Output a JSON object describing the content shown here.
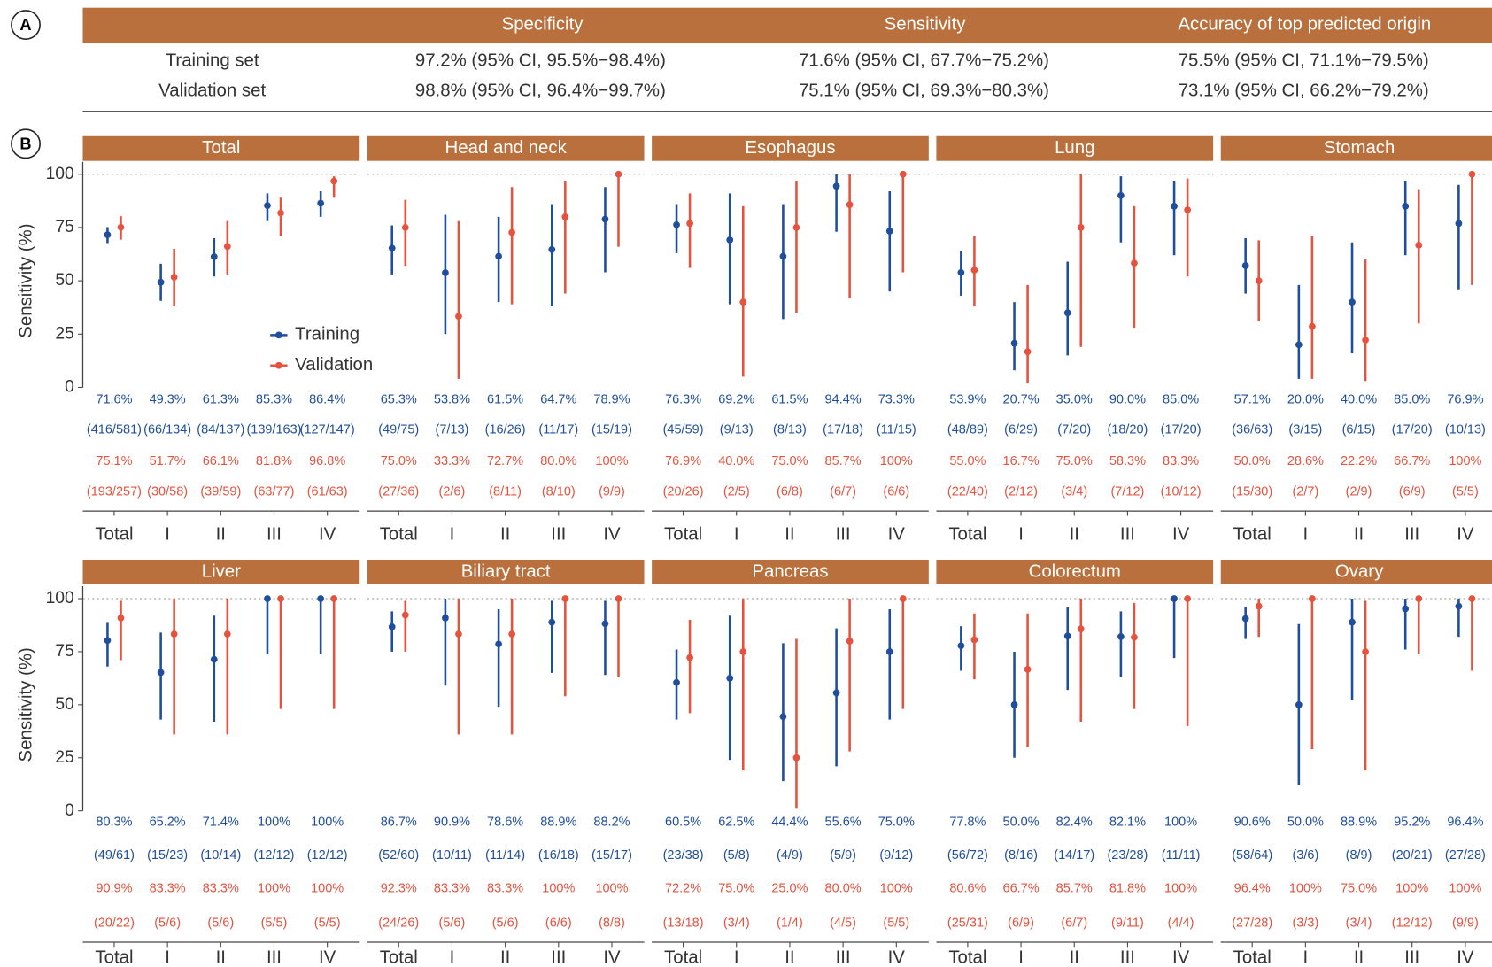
{
  "labels": [
    "A",
    "B"
  ],
  "table": {
    "header": [
      "Specificity",
      "Sensitivity",
      "Accuracy of top predicted origin"
    ],
    "rows": [
      [
        "Training set",
        "97.2% (95% CI, 95.5%−98.4%)",
        "71.6% (95% CI, 67.7%−75.2%)",
        "75.5% (95% CI, 71.1%−79.5%)"
      ],
      [
        "Validation set",
        "98.8% (95% CI, 96.4%−99.7%)",
        "75.1% (95% CI, 69.3%−80.3%)",
        "73.1% (95% CI, 66.2%−79.2%)"
      ]
    ]
  },
  "chart_data": [
    {
      "type": "errorbar",
      "title": "Total",
      "ylabel": "Sensitivity (%)",
      "ylim": [
        0,
        100
      ],
      "yticks": [
        0,
        25,
        50,
        75,
        100
      ],
      "hline": 100,
      "legend": "center-left",
      "categories": [
        "Total",
        "I",
        "II",
        "III",
        "IV"
      ],
      "series": [
        {
          "name": "Training",
          "color": "#1f4e9c",
          "values": [
            71.6,
            49.3,
            61.3,
            85.3,
            86.4
          ],
          "lower": [
            67.7,
            40.6,
            52,
            78,
            80
          ],
          "upper": [
            75.2,
            58,
            70,
            91,
            92
          ],
          "value_labels": [
            "71.6%",
            "49.3%",
            "61.3%",
            "85.3%",
            "86.4%"
          ],
          "counts": [
            "(416/581)",
            "(66/134)",
            "(84/137)",
            "(139/163)",
            "(127/147)"
          ]
        },
        {
          "name": "Validation",
          "color": "#e5533f",
          "values": [
            75.1,
            51.7,
            66.1,
            81.8,
            96.8
          ],
          "lower": [
            69.3,
            38,
            53,
            71,
            89
          ],
          "upper": [
            80.3,
            65,
            78,
            89,
            99
          ],
          "value_labels": [
            "75.1%",
            "51.7%",
            "66.1%",
            "81.8%",
            "96.8%"
          ],
          "counts": [
            "(193/257)",
            "(30/58)",
            "(39/59)",
            "(63/77)",
            "(61/63)"
          ]
        }
      ]
    },
    {
      "type": "errorbar",
      "title": "Head and neck",
      "ylim": [
        0,
        100
      ],
      "hline": 100,
      "categories": [
        "Total",
        "I",
        "II",
        "III",
        "IV"
      ],
      "series": [
        {
          "color": "#1f4e9c",
          "values": [
            65.3,
            53.8,
            61.5,
            64.7,
            78.9
          ],
          "lower": [
            53,
            25,
            40,
            38,
            54
          ],
          "upper": [
            76,
            81,
            80,
            86,
            94
          ],
          "value_labels": [
            "65.3%",
            "53.8%",
            "61.5%",
            "64.7%",
            "78.9%"
          ],
          "counts": [
            "(49/75)",
            "(7/13)",
            "(16/26)",
            "(11/17)",
            "(15/19)"
          ]
        },
        {
          "color": "#e5533f",
          "values": [
            75.0,
            33.3,
            72.7,
            80.0,
            100
          ],
          "lower": [
            57,
            4,
            39,
            44,
            66
          ],
          "upper": [
            88,
            78,
            94,
            97,
            100
          ],
          "value_labels": [
            "75.0%",
            "33.3%",
            "72.7%",
            "80.0%",
            "100%"
          ],
          "counts": [
            "(27/36)",
            "(2/6)",
            "(8/11)",
            "(8/10)",
            "(9/9)"
          ]
        }
      ]
    },
    {
      "type": "errorbar",
      "title": "Esophagus",
      "ylim": [
        0,
        100
      ],
      "hline": 100,
      "categories": [
        "Total",
        "I",
        "II",
        "III",
        "IV"
      ],
      "series": [
        {
          "color": "#1f4e9c",
          "values": [
            76.3,
            69.2,
            61.5,
            94.4,
            73.3
          ],
          "lower": [
            63,
            39,
            32,
            73,
            45
          ],
          "upper": [
            86,
            91,
            86,
            100,
            92
          ],
          "value_labels": [
            "76.3%",
            "69.2%",
            "61.5%",
            "94.4%",
            "73.3%"
          ],
          "counts": [
            "(45/59)",
            "(9/13)",
            "(8/13)",
            "(17/18)",
            "(11/15)"
          ]
        },
        {
          "color": "#e5533f",
          "values": [
            76.9,
            40.0,
            75.0,
            85.7,
            100
          ],
          "lower": [
            56,
            5,
            35,
            42,
            54
          ],
          "upper": [
            91,
            85,
            97,
            100,
            100
          ],
          "value_labels": [
            "76.9%",
            "40.0%",
            "75.0%",
            "85.7%",
            "100%"
          ],
          "counts": [
            "(20/26)",
            "(2/5)",
            "(6/8)",
            "(6/7)",
            "(6/6)"
          ]
        }
      ]
    },
    {
      "type": "errorbar",
      "title": "Lung",
      "ylim": [
        0,
        100
      ],
      "hline": 100,
      "categories": [
        "Total",
        "I",
        "II",
        "III",
        "IV"
      ],
      "series": [
        {
          "color": "#1f4e9c",
          "values": [
            53.9,
            20.7,
            35.0,
            90.0,
            85.0
          ],
          "lower": [
            43,
            8,
            15,
            68,
            62
          ],
          "upper": [
            64,
            40,
            59,
            99,
            97
          ],
          "value_labels": [
            "53.9%",
            "20.7%",
            "35.0%",
            "90.0%",
            "85.0%"
          ],
          "counts": [
            "(48/89)",
            "(6/29)",
            "(7/20)",
            "(18/20)",
            "(17/20)"
          ]
        },
        {
          "color": "#e5533f",
          "values": [
            55.0,
            16.7,
            75.0,
            58.3,
            83.3
          ],
          "lower": [
            38,
            2,
            19,
            28,
            52
          ],
          "upper": [
            71,
            48,
            100,
            85,
            98
          ],
          "value_labels": [
            "55.0%",
            "16.7%",
            "75.0%",
            "58.3%",
            "83.3%"
          ],
          "counts": [
            "(22/40)",
            "(2/12)",
            "(3/4)",
            "(7/12)",
            "(10/12)"
          ]
        }
      ]
    },
    {
      "type": "errorbar",
      "title": "Stomach",
      "ylim": [
        0,
        100
      ],
      "hline": 100,
      "categories": [
        "Total",
        "I",
        "II",
        "III",
        "IV"
      ],
      "series": [
        {
          "color": "#1f4e9c",
          "values": [
            57.1,
            20.0,
            40.0,
            85.0,
            76.9
          ],
          "lower": [
            44,
            4,
            16,
            62,
            46
          ],
          "upper": [
            70,
            48,
            68,
            97,
            95
          ],
          "value_labels": [
            "57.1%",
            "20.0%",
            "40.0%",
            "85.0%",
            "76.9%"
          ],
          "counts": [
            "(36/63)",
            "(3/15)",
            "(6/15)",
            "(17/20)",
            "(10/13)"
          ]
        },
        {
          "color": "#e5533f",
          "values": [
            50.0,
            28.6,
            22.2,
            66.7,
            100
          ],
          "lower": [
            31,
            4,
            3,
            30,
            48
          ],
          "upper": [
            69,
            71,
            60,
            93,
            100
          ],
          "value_labels": [
            "50.0%",
            "28.6%",
            "22.2%",
            "66.7%",
            "100%"
          ],
          "counts": [
            "(15/30)",
            "(2/7)",
            "(2/9)",
            "(6/9)",
            "(5/5)"
          ]
        }
      ]
    },
    {
      "type": "errorbar",
      "title": "Liver",
      "ylabel": "Sensitivity (%)",
      "ylim": [
        0,
        100
      ],
      "yticks": [
        0,
        25,
        50,
        75,
        100
      ],
      "hline": 100,
      "categories": [
        "Total",
        "I",
        "II",
        "III",
        "IV"
      ],
      "series": [
        {
          "color": "#1f4e9c",
          "values": [
            80.3,
            65.2,
            71.4,
            100,
            100
          ],
          "lower": [
            68,
            43,
            42,
            74,
            74
          ],
          "upper": [
            89,
            84,
            92,
            100,
            100
          ],
          "value_labels": [
            "80.3%",
            "65.2%",
            "71.4%",
            "100%",
            "100%"
          ],
          "counts": [
            "(49/61)",
            "(15/23)",
            "(10/14)",
            "(12/12)",
            "(12/12)"
          ]
        },
        {
          "color": "#e5533f",
          "values": [
            90.9,
            83.3,
            83.3,
            100,
            100
          ],
          "lower": [
            71,
            36,
            36,
            48,
            48
          ],
          "upper": [
            99,
            100,
            100,
            100,
            100
          ],
          "value_labels": [
            "90.9%",
            "83.3%",
            "83.3%",
            "100%",
            "100%"
          ],
          "counts": [
            "(20/22)",
            "(5/6)",
            "(5/6)",
            "(5/5)",
            "(5/5)"
          ]
        }
      ]
    },
    {
      "type": "errorbar",
      "title": "Biliary tract",
      "ylim": [
        0,
        100
      ],
      "hline": 100,
      "categories": [
        "Total",
        "I",
        "II",
        "III",
        "IV"
      ],
      "series": [
        {
          "color": "#1f4e9c",
          "values": [
            86.7,
            90.9,
            78.6,
            88.9,
            88.2
          ],
          "lower": [
            75,
            59,
            49,
            65,
            64
          ],
          "upper": [
            94,
            100,
            95,
            99,
            99
          ],
          "value_labels": [
            "86.7%",
            "90.9%",
            "78.6%",
            "88.9%",
            "88.2%"
          ],
          "counts": [
            "(52/60)",
            "(10/11)",
            "(11/14)",
            "(16/18)",
            "(15/17)"
          ]
        },
        {
          "color": "#e5533f",
          "values": [
            92.3,
            83.3,
            83.3,
            100,
            100
          ],
          "lower": [
            75,
            36,
            36,
            54,
            63
          ],
          "upper": [
            99,
            100,
            100,
            100,
            100
          ],
          "value_labels": [
            "92.3%",
            "83.3%",
            "83.3%",
            "100%",
            "100%"
          ],
          "counts": [
            "(24/26)",
            "(5/6)",
            "(5/6)",
            "(6/6)",
            "(8/8)"
          ]
        }
      ]
    },
    {
      "type": "errorbar",
      "title": "Pancreas",
      "ylim": [
        0,
        100
      ],
      "hline": 100,
      "categories": [
        "Total",
        "I",
        "II",
        "III",
        "IV"
      ],
      "series": [
        {
          "color": "#1f4e9c",
          "values": [
            60.5,
            62.5,
            44.4,
            55.6,
            75.0
          ],
          "lower": [
            43,
            24,
            14,
            21,
            43
          ],
          "upper": [
            76,
            92,
            79,
            86,
            95
          ],
          "value_labels": [
            "60.5%",
            "62.5%",
            "44.4%",
            "55.6%",
            "75.0%"
          ],
          "counts": [
            "(23/38)",
            "(5/8)",
            "(4/9)",
            "(5/9)",
            "(9/12)"
          ]
        },
        {
          "color": "#e5533f",
          "values": [
            72.2,
            75.0,
            25.0,
            80.0,
            100
          ],
          "lower": [
            46,
            19,
            1,
            28,
            48
          ],
          "upper": [
            90,
            100,
            81,
            100,
            100
          ],
          "value_labels": [
            "72.2%",
            "75.0%",
            "25.0%",
            "80.0%",
            "100%"
          ],
          "counts": [
            "(13/18)",
            "(3/4)",
            "(1/4)",
            "(4/5)",
            "(5/5)"
          ]
        }
      ]
    },
    {
      "type": "errorbar",
      "title": "Colorectum",
      "ylim": [
        0,
        100
      ],
      "hline": 100,
      "categories": [
        "Total",
        "I",
        "II",
        "III",
        "IV"
      ],
      "series": [
        {
          "color": "#1f4e9c",
          "values": [
            77.8,
            50.0,
            82.4,
            82.1,
            100
          ],
          "lower": [
            66,
            25,
            57,
            63,
            72
          ],
          "upper": [
            87,
            75,
            96,
            94,
            100
          ],
          "value_labels": [
            "77.8%",
            "50.0%",
            "82.4%",
            "82.1%",
            "100%"
          ],
          "counts": [
            "(56/72)",
            "(8/16)",
            "(14/17)",
            "(23/28)",
            "(11/11)"
          ]
        },
        {
          "color": "#e5533f",
          "values": [
            80.6,
            66.7,
            85.7,
            81.8,
            100
          ],
          "lower": [
            62,
            30,
            42,
            48,
            40
          ],
          "upper": [
            93,
            93,
            100,
            98,
            100
          ],
          "value_labels": [
            "80.6%",
            "66.7%",
            "85.7%",
            "81.8%",
            "100%"
          ],
          "counts": [
            "(25/31)",
            "(6/9)",
            "(6/7)",
            "(9/11)",
            "(4/4)"
          ]
        }
      ]
    },
    {
      "type": "errorbar",
      "title": "Ovary",
      "ylim": [
        0,
        100
      ],
      "hline": 100,
      "categories": [
        "Total",
        "I",
        "II",
        "III",
        "IV"
      ],
      "series": [
        {
          "color": "#1f4e9c",
          "values": [
            90.6,
            50.0,
            88.9,
            95.2,
            96.4
          ],
          "lower": [
            81,
            12,
            52,
            76,
            82
          ],
          "upper": [
            96,
            88,
            100,
            100,
            100
          ],
          "value_labels": [
            "90.6%",
            "50.0%",
            "88.9%",
            "95.2%",
            "96.4%"
          ],
          "counts": [
            "(58/64)",
            "(3/6)",
            "(8/9)",
            "(20/21)",
            "(27/28)"
          ]
        },
        {
          "color": "#e5533f",
          "values": [
            96.4,
            100,
            75.0,
            100,
            100
          ],
          "lower": [
            82,
            29,
            19,
            74,
            66
          ],
          "upper": [
            100,
            100,
            99,
            100,
            100
          ],
          "value_labels": [
            "96.4%",
            "100%",
            "75.0%",
            "100%",
            "100%"
          ],
          "counts": [
            "(27/28)",
            "(3/3)",
            "(3/4)",
            "(12/12)",
            "(9/9)"
          ]
        }
      ]
    }
  ]
}
